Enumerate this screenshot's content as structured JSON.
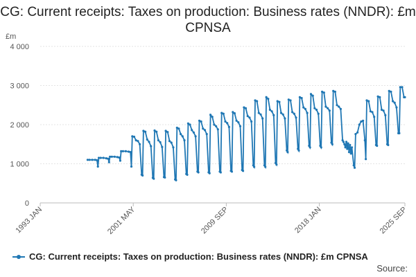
{
  "chart_data": {
    "type": "line",
    "title": "CG: Current receipts: Taxes on production: Business rates (NNDR): £m CPNSA",
    "ylabel": "£m",
    "xlabel": "",
    "ylim": [
      0,
      4000
    ],
    "yticks": [
      0,
      1000,
      2000,
      3000,
      4000
    ],
    "ytick_labels": [
      "0",
      "1 000",
      "2 000",
      "3 000",
      "4 000"
    ],
    "xlim": [
      "1993-01",
      "2025-09"
    ],
    "xticks": [
      "1993-01",
      "2001-05",
      "2009-09",
      "2018-01",
      "2025-09"
    ],
    "xtick_labels": [
      "1993 JAN",
      "2001 MAY",
      "2009 SEP",
      "2018 JAN",
      "2025 SEP"
    ],
    "grid": "horizontal",
    "legend": "bottom",
    "color": "#1f77b4",
    "series": [
      {
        "name": "CG: Current receipts: Taxes on production: Business rates (NNDR): £m CPNSA",
        "annual_pattern": "monthly values: high in Apr–Sep, falling through Oct–Jan, very low in Feb–Mar",
        "points": [
          [
            "1997-04",
            1100
          ],
          [
            "1997-06",
            1100
          ],
          [
            "1997-09",
            1100
          ],
          [
            "1997-12",
            1100
          ],
          [
            "1998-02",
            1090
          ],
          [
            "1998-03",
            930
          ],
          [
            "1998-04",
            1150
          ],
          [
            "1998-06",
            1150
          ],
          [
            "1998-09",
            1150
          ],
          [
            "1998-12",
            1140
          ],
          [
            "1999-02",
            1130
          ],
          [
            "1999-03",
            1040
          ],
          [
            "1999-04",
            1180
          ],
          [
            "1999-06",
            1180
          ],
          [
            "1999-09",
            1180
          ],
          [
            "1999-12",
            1170
          ],
          [
            "2000-02",
            1160
          ],
          [
            "2000-03",
            1080
          ],
          [
            "2000-04",
            1320
          ],
          [
            "2000-06",
            1320
          ],
          [
            "2000-09",
            1320
          ],
          [
            "2000-12",
            1310
          ],
          [
            "2001-02",
            1300
          ],
          [
            "2001-03",
            930
          ],
          [
            "2001-04",
            1700
          ],
          [
            "2001-06",
            1690
          ],
          [
            "2001-08",
            1600
          ],
          [
            "2001-10",
            1580
          ],
          [
            "2001-12",
            1500
          ],
          [
            "2002-02",
            720
          ],
          [
            "2002-03",
            700
          ],
          [
            "2002-04",
            1840
          ],
          [
            "2002-06",
            1820
          ],
          [
            "2002-08",
            1620
          ],
          [
            "2002-10",
            1560
          ],
          [
            "2002-12",
            1450
          ],
          [
            "2003-02",
            640
          ],
          [
            "2003-03",
            620
          ],
          [
            "2003-04",
            1850
          ],
          [
            "2003-06",
            1820
          ],
          [
            "2003-08",
            1600
          ],
          [
            "2003-10",
            1550
          ],
          [
            "2003-12",
            1430
          ],
          [
            "2004-02",
            660
          ],
          [
            "2004-03",
            650
          ],
          [
            "2004-04",
            1840
          ],
          [
            "2004-06",
            1810
          ],
          [
            "2004-08",
            1580
          ],
          [
            "2004-10",
            1540
          ],
          [
            "2004-12",
            1420
          ],
          [
            "2005-02",
            600
          ],
          [
            "2005-03",
            580
          ],
          [
            "2005-04",
            1920
          ],
          [
            "2005-06",
            1900
          ],
          [
            "2005-08",
            1760
          ],
          [
            "2005-10",
            1700
          ],
          [
            "2005-12",
            1600
          ],
          [
            "2006-02",
            740
          ],
          [
            "2006-03",
            720
          ],
          [
            "2006-04",
            2030
          ],
          [
            "2006-06",
            2000
          ],
          [
            "2006-08",
            1860
          ],
          [
            "2006-10",
            1800
          ],
          [
            "2006-12",
            1700
          ],
          [
            "2007-02",
            800
          ],
          [
            "2007-03",
            780
          ],
          [
            "2007-04",
            2100
          ],
          [
            "2007-06",
            2080
          ],
          [
            "2007-08",
            1900
          ],
          [
            "2007-10",
            1860
          ],
          [
            "2007-12",
            1760
          ],
          [
            "2008-02",
            780
          ],
          [
            "2008-03",
            760
          ],
          [
            "2008-04",
            2250
          ],
          [
            "2008-06",
            2200
          ],
          [
            "2008-08",
            2000
          ],
          [
            "2008-10",
            1960
          ],
          [
            "2008-12",
            1880
          ],
          [
            "2009-02",
            800
          ],
          [
            "2009-03",
            780
          ],
          [
            "2009-04",
            2300
          ],
          [
            "2009-06",
            2280
          ],
          [
            "2009-08",
            2080
          ],
          [
            "2009-10",
            2040
          ],
          [
            "2009-12",
            1940
          ],
          [
            "2010-02",
            820
          ],
          [
            "2010-03",
            800
          ],
          [
            "2010-04",
            2320
          ],
          [
            "2010-06",
            2290
          ],
          [
            "2010-08",
            2100
          ],
          [
            "2010-10",
            2060
          ],
          [
            "2010-12",
            1960
          ],
          [
            "2011-02",
            840
          ],
          [
            "2011-03",
            820
          ],
          [
            "2011-04",
            2440
          ],
          [
            "2011-06",
            2420
          ],
          [
            "2011-08",
            2220
          ],
          [
            "2011-10",
            2180
          ],
          [
            "2011-12",
            2080
          ],
          [
            "2012-02",
            960
          ],
          [
            "2012-03",
            920
          ],
          [
            "2012-04",
            2620
          ],
          [
            "2012-06",
            2600
          ],
          [
            "2012-08",
            2300
          ],
          [
            "2012-10",
            2260
          ],
          [
            "2012-12",
            2160
          ],
          [
            "2013-02",
            960
          ],
          [
            "2013-03",
            920
          ],
          [
            "2013-04",
            2700
          ],
          [
            "2013-06",
            2660
          ],
          [
            "2013-08",
            2380
          ],
          [
            "2013-10",
            2340
          ],
          [
            "2013-12",
            2240
          ],
          [
            "2014-02",
            1020
          ],
          [
            "2014-03",
            980
          ],
          [
            "2014-04",
            2600
          ],
          [
            "2014-06",
            2580
          ],
          [
            "2014-08",
            2300
          ],
          [
            "2014-10",
            2260
          ],
          [
            "2014-12",
            2160
          ],
          [
            "2015-02",
            1340
          ],
          [
            "2015-03",
            1300
          ],
          [
            "2015-04",
            2640
          ],
          [
            "2015-06",
            2620
          ],
          [
            "2015-08",
            2320
          ],
          [
            "2015-10",
            2280
          ],
          [
            "2015-12",
            2180
          ],
          [
            "2016-02",
            1380
          ],
          [
            "2016-03",
            1340
          ],
          [
            "2016-04",
            2700
          ],
          [
            "2016-06",
            2680
          ],
          [
            "2016-08",
            2440
          ],
          [
            "2016-10",
            2400
          ],
          [
            "2016-12",
            2300
          ],
          [
            "2017-02",
            1460
          ],
          [
            "2017-03",
            1420
          ],
          [
            "2017-04",
            2780
          ],
          [
            "2017-06",
            2740
          ],
          [
            "2017-08",
            2420
          ],
          [
            "2017-10",
            2380
          ],
          [
            "2017-12",
            2280
          ],
          [
            "2018-02",
            1460
          ],
          [
            "2018-03",
            1420
          ],
          [
            "2018-04",
            2840
          ],
          [
            "2018-06",
            2820
          ],
          [
            "2018-08",
            2460
          ],
          [
            "2018-10",
            2420
          ],
          [
            "2018-12",
            2360
          ],
          [
            "2019-02",
            1540
          ],
          [
            "2019-03",
            1500
          ],
          [
            "2019-04",
            2860
          ],
          [
            "2019-06",
            2840
          ],
          [
            "2019-08",
            2500
          ],
          [
            "2019-10",
            2460
          ],
          [
            "2019-12",
            2400
          ],
          [
            "2020-02",
            1600
          ],
          [
            "2020-03",
            1560
          ],
          [
            "2020-04",
            1500
          ],
          [
            "2020-05",
            1420
          ],
          [
            "2020-06",
            1560
          ],
          [
            "2020-07",
            1380
          ],
          [
            "2020-08",
            1520
          ],
          [
            "2020-09",
            1300
          ],
          [
            "2020-10",
            1480
          ],
          [
            "2020-11",
            1260
          ],
          [
            "2020-12",
            1420
          ],
          [
            "2021-02",
            960
          ],
          [
            "2021-03",
            900
          ],
          [
            "2021-04",
            1760
          ],
          [
            "2021-06",
            1800
          ],
          [
            "2021-08",
            2000
          ],
          [
            "2021-10",
            2080
          ],
          [
            "2021-12",
            2100
          ],
          [
            "2022-02",
            1600
          ],
          [
            "2022-03",
            1120
          ],
          [
            "2022-04",
            2620
          ],
          [
            "2022-06",
            2600
          ],
          [
            "2022-08",
            2340
          ],
          [
            "2022-10",
            2320
          ],
          [
            "2022-12",
            2200
          ],
          [
            "2023-02",
            1480
          ],
          [
            "2023-03",
            1460
          ],
          [
            "2023-04",
            2720
          ],
          [
            "2023-06",
            2700
          ],
          [
            "2023-08",
            2380
          ],
          [
            "2023-10",
            2360
          ],
          [
            "2023-12",
            2240
          ],
          [
            "2024-02",
            1500
          ],
          [
            "2024-03",
            1480
          ],
          [
            "2024-04",
            2860
          ],
          [
            "2024-06",
            2840
          ],
          [
            "2024-08",
            2600
          ],
          [
            "2024-10",
            2560
          ],
          [
            "2024-12",
            2440
          ],
          [
            "2025-02",
            1780
          ],
          [
            "2025-03",
            1780
          ],
          [
            "2025-04",
            2960
          ],
          [
            "2025-06",
            2960
          ],
          [
            "2025-08",
            2700
          ],
          [
            "2025-09",
            2700
          ]
        ]
      }
    ]
  },
  "legend_label": "CG: Current receipts: Taxes on production: Business rates (NNDR): £m CPNSA",
  "source_label": "Source:"
}
